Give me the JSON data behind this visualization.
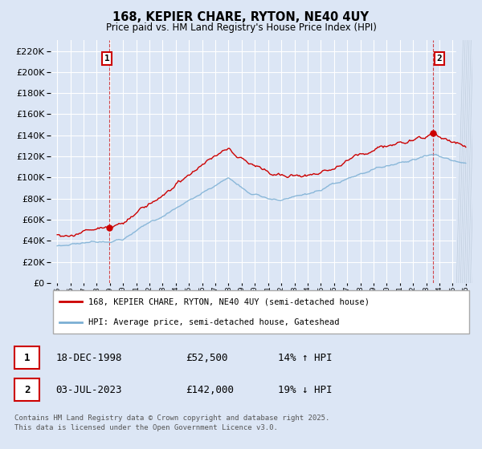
{
  "title": "168, KEPIER CHARE, RYTON, NE40 4UY",
  "subtitle": "Price paid vs. HM Land Registry's House Price Index (HPI)",
  "ytick_values": [
    0,
    20000,
    40000,
    60000,
    80000,
    100000,
    120000,
    140000,
    160000,
    180000,
    200000,
    220000
  ],
  "ylim": [
    0,
    230000
  ],
  "xlim_start": 1994.5,
  "xlim_end": 2026.5,
  "background_color": "#dce6f5",
  "plot_bg_color": "#dce6f5",
  "grid_color": "#ffffff",
  "red_line_color": "#cc0000",
  "blue_line_color": "#7bafd4",
  "dashed_line_color": "#cc0000",
  "marker1_x": 1998.97,
  "marker1_y": 52500,
  "marker2_x": 2023.5,
  "marker2_y": 142000,
  "marker1_label": "1",
  "marker2_label": "2",
  "legend_line1": "168, KEPIER CHARE, RYTON, NE40 4UY (semi-detached house)",
  "legend_line2": "HPI: Average price, semi-detached house, Gateshead",
  "table_row1": [
    "1",
    "18-DEC-1998",
    "£52,500",
    "14% ↑ HPI"
  ],
  "table_row2": [
    "2",
    "03-JUL-2023",
    "£142,000",
    "19% ↓ HPI"
  ],
  "footer": "Contains HM Land Registry data © Crown copyright and database right 2025.\nThis data is licensed under the Open Government Licence v3.0."
}
